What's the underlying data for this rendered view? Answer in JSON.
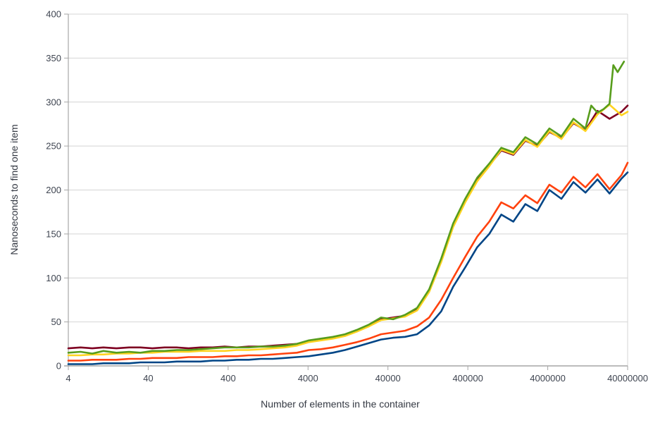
{
  "chart_data": {
    "type": "line",
    "title": "",
    "xlabel": "Number of elements in the container",
    "ylabel": "Nanoseconds to find one item",
    "x_scale": "log",
    "xlim": [
      4,
      40000000
    ],
    "ylim": [
      0,
      400
    ],
    "x_ticks": [
      4,
      40,
      400,
      4000,
      40000,
      400000,
      4000000,
      40000000
    ],
    "x_tick_labels": [
      "4",
      "40",
      "400",
      "4000",
      "40000",
      "400000",
      "4000000",
      "40000000"
    ],
    "y_ticks": [
      0,
      50,
      100,
      150,
      200,
      250,
      300,
      350,
      400
    ],
    "y_tick_labels": [
      "0",
      "50",
      "100",
      "150",
      "200",
      "250",
      "300",
      "350",
      "400"
    ],
    "grid": true,
    "legend_position": "none",
    "background": "#ffffff",
    "grid_color": "#d4d4d4",
    "axis_color": "#a6a6a6",
    "text_color": "#3e4450",
    "line_width": 2.6,
    "series": [
      {
        "name": "line-dark-red",
        "color": "#7E0021",
        "points": [
          [
            4,
            20
          ],
          [
            5.7,
            21
          ],
          [
            8,
            20
          ],
          [
            11,
            21
          ],
          [
            16,
            20
          ],
          [
            23,
            21
          ],
          [
            32,
            21
          ],
          [
            45,
            20
          ],
          [
            64,
            21
          ],
          [
            91,
            21
          ],
          [
            128,
            20
          ],
          [
            181,
            21
          ],
          [
            256,
            21
          ],
          [
            362,
            22
          ],
          [
            512,
            21
          ],
          [
            724,
            22
          ],
          [
            1024,
            22
          ],
          [
            1448,
            23
          ],
          [
            2048,
            24
          ],
          [
            2896,
            25
          ],
          [
            4096,
            28
          ],
          [
            5793,
            30
          ],
          [
            8192,
            32
          ],
          [
            11585,
            35
          ],
          [
            16384,
            40
          ],
          [
            23170,
            46
          ],
          [
            32768,
            53
          ],
          [
            46341,
            55
          ],
          [
            65536,
            57
          ],
          [
            92682,
            64
          ],
          [
            131072,
            85
          ],
          [
            185364,
            120
          ],
          [
            262144,
            160
          ],
          [
            370728,
            188
          ],
          [
            524288,
            212
          ],
          [
            741455,
            228
          ],
          [
            1048576,
            245
          ],
          [
            1482910,
            240
          ],
          [
            2097152,
            256
          ],
          [
            2965821,
            250
          ],
          [
            4194304,
            266
          ],
          [
            5931642,
            259
          ],
          [
            8388608,
            276
          ],
          [
            11863283,
            268
          ],
          [
            16777216,
            290
          ],
          [
            23726566,
            281
          ],
          [
            33554432,
            289
          ],
          [
            40000000,
            296
          ]
        ]
      },
      {
        "name": "line-blue",
        "color": "#004586",
        "points": [
          [
            4,
            2
          ],
          [
            5.7,
            2
          ],
          [
            8,
            2
          ],
          [
            11,
            3
          ],
          [
            16,
            3
          ],
          [
            23,
            3
          ],
          [
            32,
            4
          ],
          [
            45,
            4
          ],
          [
            64,
            4
          ],
          [
            91,
            5
          ],
          [
            128,
            5
          ],
          [
            181,
            5
          ],
          [
            256,
            6
          ],
          [
            362,
            6
          ],
          [
            512,
            7
          ],
          [
            724,
            7
          ],
          [
            1024,
            8
          ],
          [
            1448,
            8
          ],
          [
            2048,
            9
          ],
          [
            2896,
            10
          ],
          [
            4096,
            11
          ],
          [
            5793,
            13
          ],
          [
            8192,
            15
          ],
          [
            11585,
            18
          ],
          [
            16384,
            22
          ],
          [
            23170,
            26
          ],
          [
            32768,
            30
          ],
          [
            46341,
            32
          ],
          [
            65536,
            33
          ],
          [
            92682,
            36
          ],
          [
            131072,
            46
          ],
          [
            185364,
            62
          ],
          [
            262144,
            90
          ],
          [
            370728,
            112
          ],
          [
            524288,
            135
          ],
          [
            741455,
            150
          ],
          [
            1048576,
            172
          ],
          [
            1482910,
            164
          ],
          [
            2097152,
            184
          ],
          [
            2965821,
            176
          ],
          [
            4194304,
            200
          ],
          [
            5931642,
            190
          ],
          [
            8388608,
            209
          ],
          [
            11863283,
            197
          ],
          [
            16777216,
            212
          ],
          [
            23726566,
            196
          ],
          [
            33554432,
            213
          ],
          [
            40000000,
            220
          ]
        ]
      },
      {
        "name": "line-orange",
        "color": "#FF420E",
        "points": [
          [
            4,
            6
          ],
          [
            5.7,
            6
          ],
          [
            8,
            7
          ],
          [
            11,
            7
          ],
          [
            16,
            7
          ],
          [
            23,
            8
          ],
          [
            32,
            8
          ],
          [
            45,
            9
          ],
          [
            64,
            9
          ],
          [
            91,
            9
          ],
          [
            128,
            10
          ],
          [
            181,
            10
          ],
          [
            256,
            10
          ],
          [
            362,
            11
          ],
          [
            512,
            11
          ],
          [
            724,
            12
          ],
          [
            1024,
            12
          ],
          [
            1448,
            13
          ],
          [
            2048,
            14
          ],
          [
            2896,
            15
          ],
          [
            4096,
            18
          ],
          [
            5793,
            19
          ],
          [
            8192,
            21
          ],
          [
            11585,
            24
          ],
          [
            16384,
            27
          ],
          [
            23170,
            31
          ],
          [
            32768,
            36
          ],
          [
            46341,
            38
          ],
          [
            65536,
            40
          ],
          [
            92682,
            45
          ],
          [
            131072,
            55
          ],
          [
            185364,
            75
          ],
          [
            262144,
            100
          ],
          [
            370728,
            124
          ],
          [
            524288,
            147
          ],
          [
            741455,
            164
          ],
          [
            1048576,
            186
          ],
          [
            1482910,
            179
          ],
          [
            2097152,
            194
          ],
          [
            2965821,
            185
          ],
          [
            4194304,
            206
          ],
          [
            5931642,
            197
          ],
          [
            8388608,
            215
          ],
          [
            11863283,
            203
          ],
          [
            16777216,
            218
          ],
          [
            23726566,
            201
          ],
          [
            33554432,
            217
          ],
          [
            40000000,
            231
          ]
        ]
      },
      {
        "name": "line-yellow",
        "color": "#FFD320",
        "points": [
          [
            4,
            12
          ],
          [
            5.7,
            12
          ],
          [
            8,
            13
          ],
          [
            11,
            13
          ],
          [
            16,
            14
          ],
          [
            23,
            14
          ],
          [
            32,
            15
          ],
          [
            45,
            15
          ],
          [
            64,
            16
          ],
          [
            91,
            16
          ],
          [
            128,
            16
          ],
          [
            181,
            17
          ],
          [
            256,
            17
          ],
          [
            362,
            17
          ],
          [
            512,
            18
          ],
          [
            724,
            18
          ],
          [
            1024,
            19
          ],
          [
            1448,
            20
          ],
          [
            2048,
            21
          ],
          [
            2896,
            23
          ],
          [
            4096,
            27
          ],
          [
            5793,
            29
          ],
          [
            8192,
            31
          ],
          [
            11585,
            34
          ],
          [
            16384,
            39
          ],
          [
            23170,
            45
          ],
          [
            32768,
            52
          ],
          [
            46341,
            54
          ],
          [
            65536,
            56
          ],
          [
            92682,
            63
          ],
          [
            131072,
            84
          ],
          [
            185364,
            118
          ],
          [
            262144,
            158
          ],
          [
            370728,
            186
          ],
          [
            524288,
            210
          ],
          [
            741455,
            227
          ],
          [
            1048576,
            246
          ],
          [
            1482910,
            241
          ],
          [
            2097152,
            257
          ],
          [
            2965821,
            249
          ],
          [
            4194304,
            267
          ],
          [
            5931642,
            258
          ],
          [
            8388608,
            277
          ],
          [
            11863283,
            267
          ],
          [
            16777216,
            286
          ],
          [
            23726566,
            297
          ],
          [
            33554432,
            285
          ],
          [
            40000000,
            289
          ]
        ]
      },
      {
        "name": "line-green",
        "color": "#579D1C",
        "points": [
          [
            4,
            15
          ],
          [
            5.7,
            16
          ],
          [
            8,
            14
          ],
          [
            11,
            17
          ],
          [
            16,
            15
          ],
          [
            23,
            16
          ],
          [
            32,
            15
          ],
          [
            45,
            17
          ],
          [
            64,
            17
          ],
          [
            91,
            18
          ],
          [
            128,
            18
          ],
          [
            181,
            19
          ],
          [
            256,
            20
          ],
          [
            362,
            21
          ],
          [
            512,
            21
          ],
          [
            724,
            21
          ],
          [
            1024,
            22
          ],
          [
            1448,
            22
          ],
          [
            2048,
            23
          ],
          [
            2896,
            25
          ],
          [
            4096,
            29
          ],
          [
            5793,
            31
          ],
          [
            8192,
            33
          ],
          [
            11585,
            36
          ],
          [
            16384,
            41
          ],
          [
            23170,
            47
          ],
          [
            32768,
            55
          ],
          [
            46341,
            53
          ],
          [
            65536,
            58
          ],
          [
            92682,
            66
          ],
          [
            131072,
            87
          ],
          [
            185364,
            122
          ],
          [
            262144,
            162
          ],
          [
            370728,
            190
          ],
          [
            524288,
            214
          ],
          [
            741455,
            230
          ],
          [
            1048576,
            248
          ],
          [
            1482910,
            243
          ],
          [
            2097152,
            260
          ],
          [
            2965821,
            252
          ],
          [
            4194304,
            270
          ],
          [
            5931642,
            261
          ],
          [
            8388608,
            281
          ],
          [
            11863283,
            270
          ],
          [
            14000000,
            296
          ],
          [
            16777216,
            288
          ],
          [
            20000000,
            292
          ],
          [
            23726566,
            298
          ],
          [
            26500000,
            342
          ],
          [
            30000000,
            334
          ],
          [
            36000000,
            346
          ]
        ]
      }
    ]
  }
}
